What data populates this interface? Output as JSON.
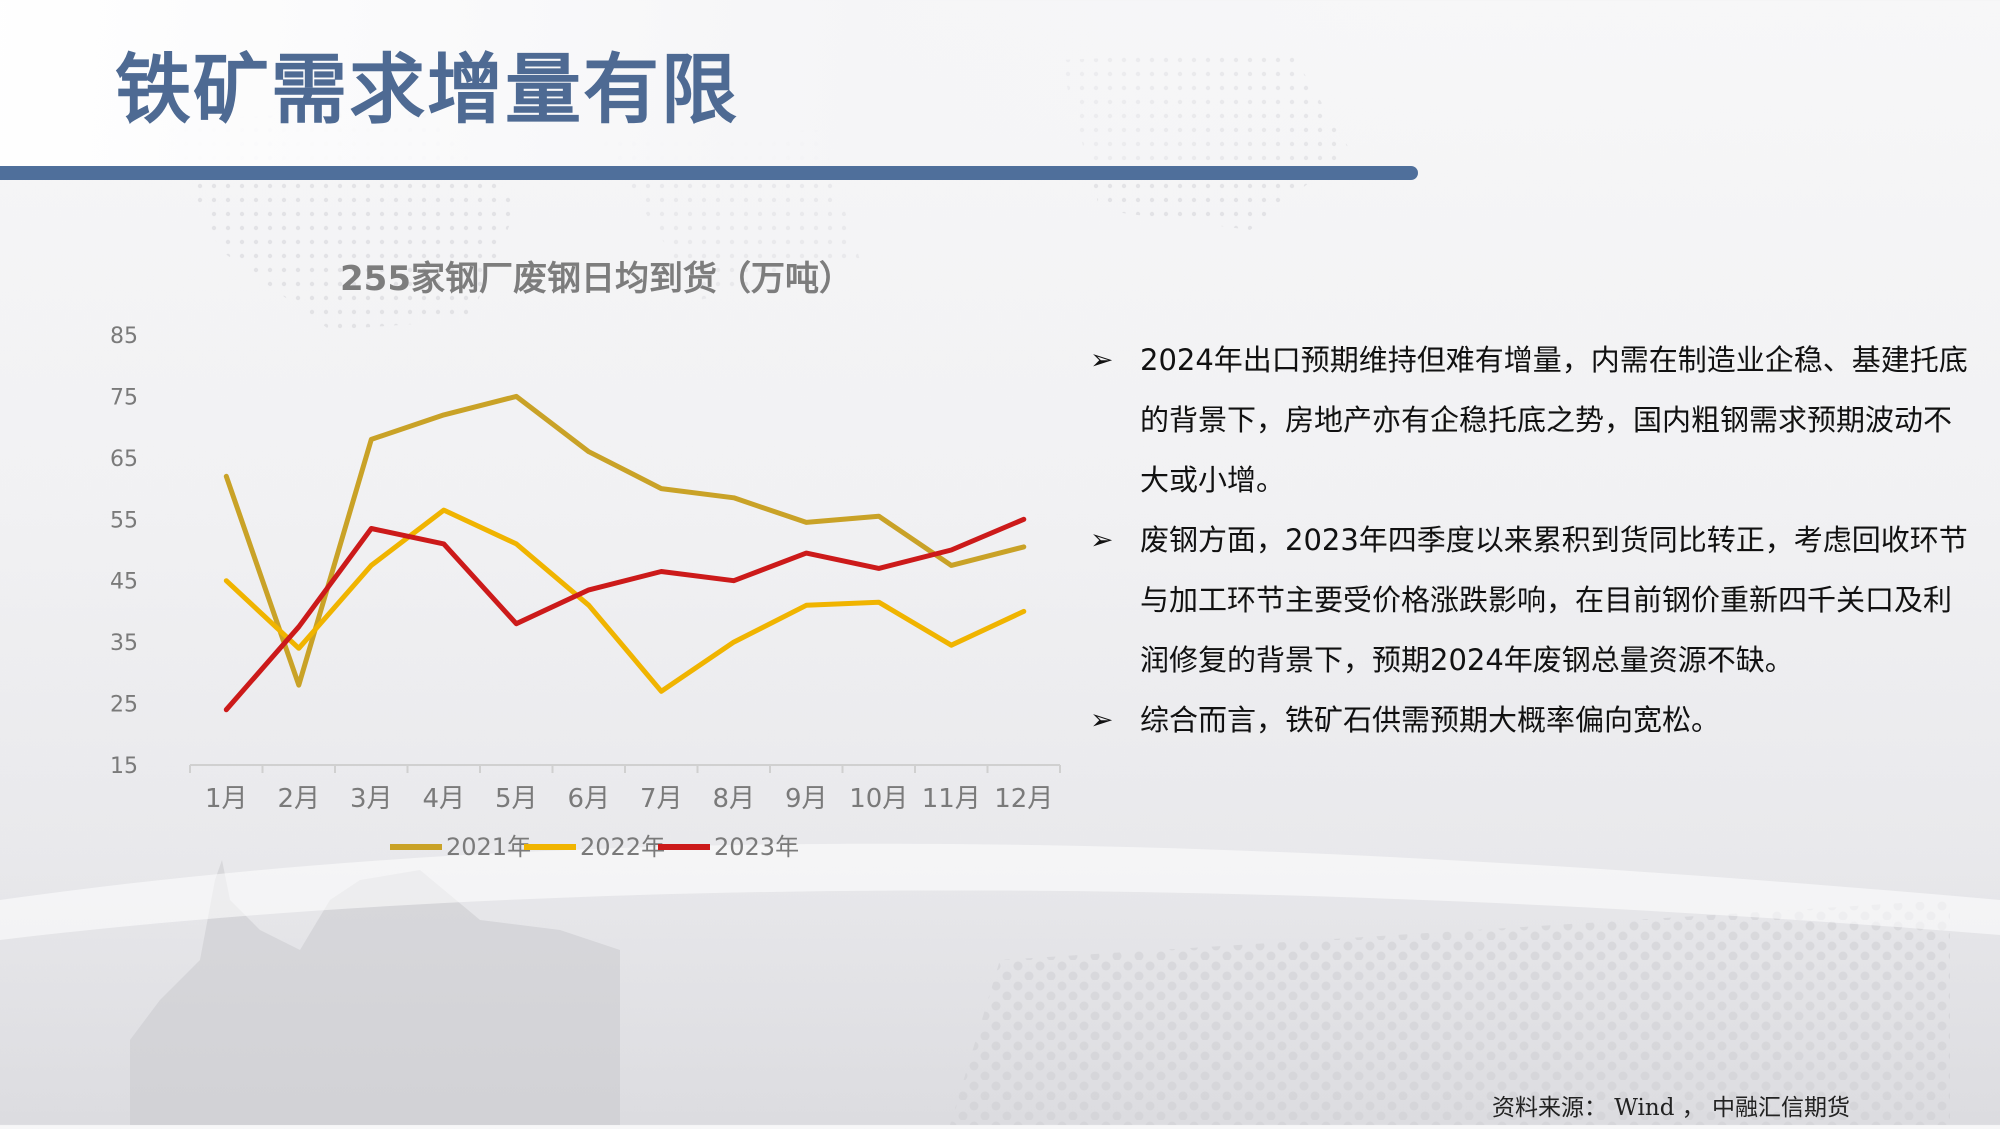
{
  "slide": {
    "title": "铁矿需求增量有限",
    "source": "资料来源： Wind ， 中融汇信期货"
  },
  "bullets": [
    {
      "icon": "arrowhead-bullet-icon",
      "text": "2024年出口预期维持但难有增量，内需在制造业企稳、基建托底的背景下，房地产亦有企稳托底之势，国内粗钢需求预期波动不大或小增。"
    },
    {
      "icon": "arrowhead-bullet-icon",
      "text": "废钢方面，2023年四季度以来累积到货同比转正，考虑回收环节与加工环节主要受价格涨跌影响，在目前钢价重新四千关口及利润修复的背景下，预期2024年废钢总量资源不缺。"
    },
    {
      "icon": "arrowhead-bullet-icon",
      "text": "综合而言，铁矿石供需预期大概率偏向宽松。"
    }
  ],
  "chart_data": {
    "type": "line",
    "title": "255家钢厂废钢日均到货（万吨）",
    "xlabel": "",
    "ylabel": "",
    "categories": [
      "1月",
      "2月",
      "3月",
      "4月",
      "5月",
      "6月",
      "7月",
      "8月",
      "9月",
      "10月",
      "11月",
      "12月"
    ],
    "ylim": [
      15,
      85
    ],
    "yticks": [
      15,
      25,
      35,
      45,
      55,
      65,
      75,
      85
    ],
    "grid": false,
    "legend_position": "bottom",
    "series": [
      {
        "name": "2021年",
        "color": "#c9a227",
        "values": [
          62,
          28,
          68,
          72,
          75,
          66,
          60,
          58.5,
          54.5,
          55.5,
          47.5,
          50.5
        ]
      },
      {
        "name": "2022年",
        "color": "#f0b400",
        "values": [
          45,
          34,
          47.5,
          56.5,
          51,
          41,
          27,
          35,
          41,
          41.5,
          34.5,
          40
        ]
      },
      {
        "name": "2023年",
        "color": "#cc1a1a",
        "values": [
          24,
          37.5,
          53.5,
          51,
          38,
          43.5,
          46.5,
          45,
          49.5,
          47,
          50,
          55
        ]
      }
    ]
  }
}
